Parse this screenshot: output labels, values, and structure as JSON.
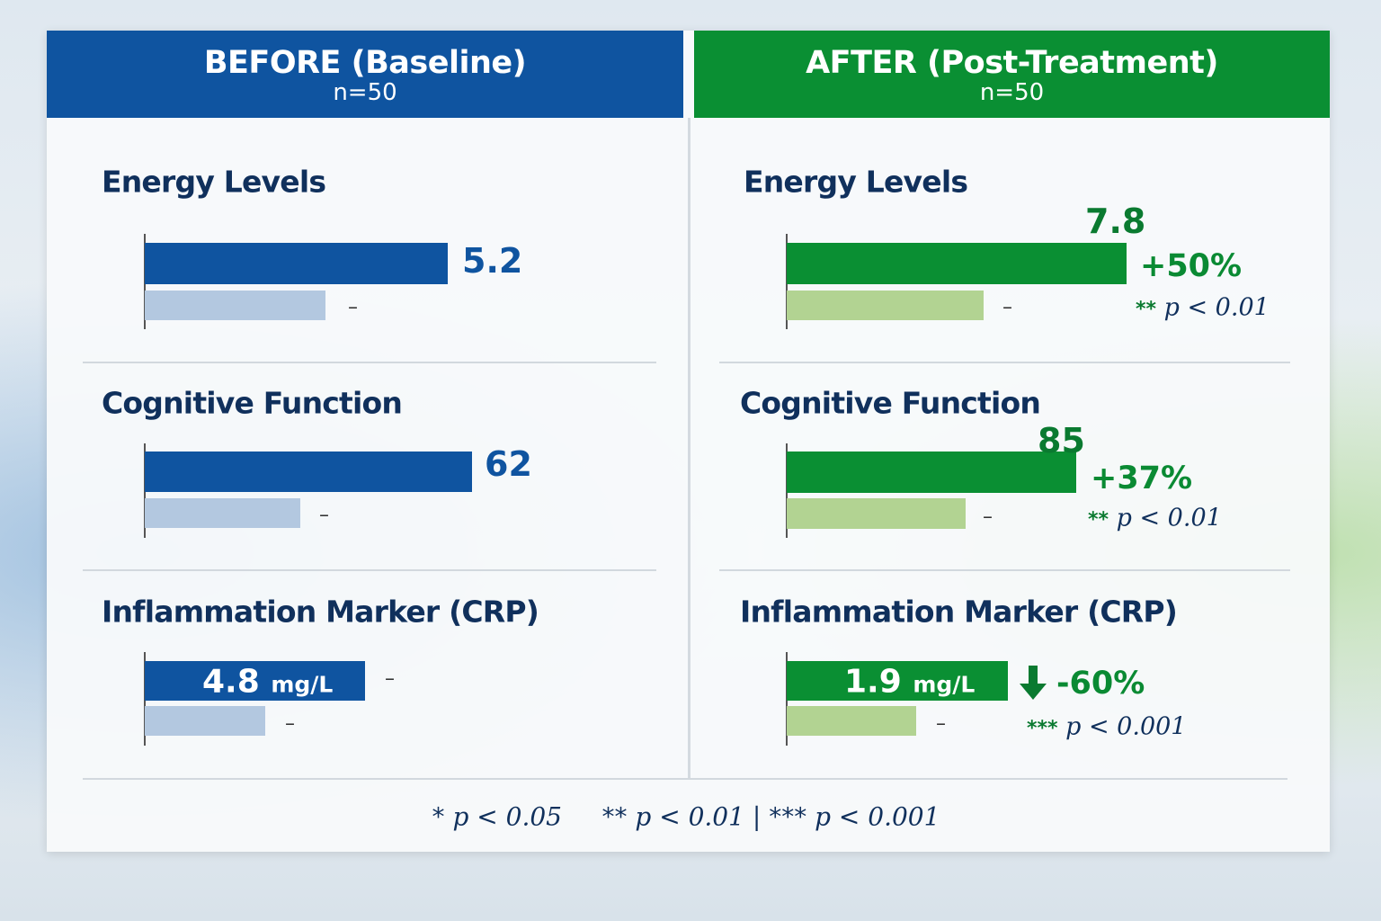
{
  "colors": {
    "before": "#0f54a0",
    "before_light": "#b3c8e0",
    "after": "#0a8f33",
    "after_light": "#b2d392",
    "text": "#10305c"
  },
  "before": {
    "title": "BEFORE (Baseline)",
    "n": "n=50"
  },
  "after": {
    "title": "AFTER (Post-Treatment)",
    "n": "n=50"
  },
  "chart_data": {
    "type": "bar",
    "metrics": [
      {
        "name": "Energy Levels",
        "before": {
          "value": "5.2",
          "reference": "–"
        },
        "after": {
          "value": "7.8",
          "reference": "–",
          "change": "+50%",
          "stars": "**",
          "p": "p < 0.01"
        }
      },
      {
        "name": "Cognitive Function",
        "before": {
          "value": "62",
          "reference": "–"
        },
        "after": {
          "value": "85",
          "reference": "–",
          "change": "+37%",
          "stars": "**",
          "p": "p < 0.01"
        }
      },
      {
        "name": "Inflammation Marker (CRP)",
        "before": {
          "value": "4.8",
          "unit": "mg/L",
          "reference": "–",
          "reference2": "–"
        },
        "after": {
          "value": "1.9",
          "unit": "mg/L",
          "reference": "–",
          "change": "-60%",
          "direction": "down-arrow",
          "stars": "***",
          "p": "p < 0.001"
        }
      }
    ]
  },
  "footer": {
    "s1": "*",
    "p1": "p < 0.05",
    "s2": "**",
    "p2": "p < 0.01 |",
    "s3": "***",
    "p3": "p < 0.001"
  }
}
